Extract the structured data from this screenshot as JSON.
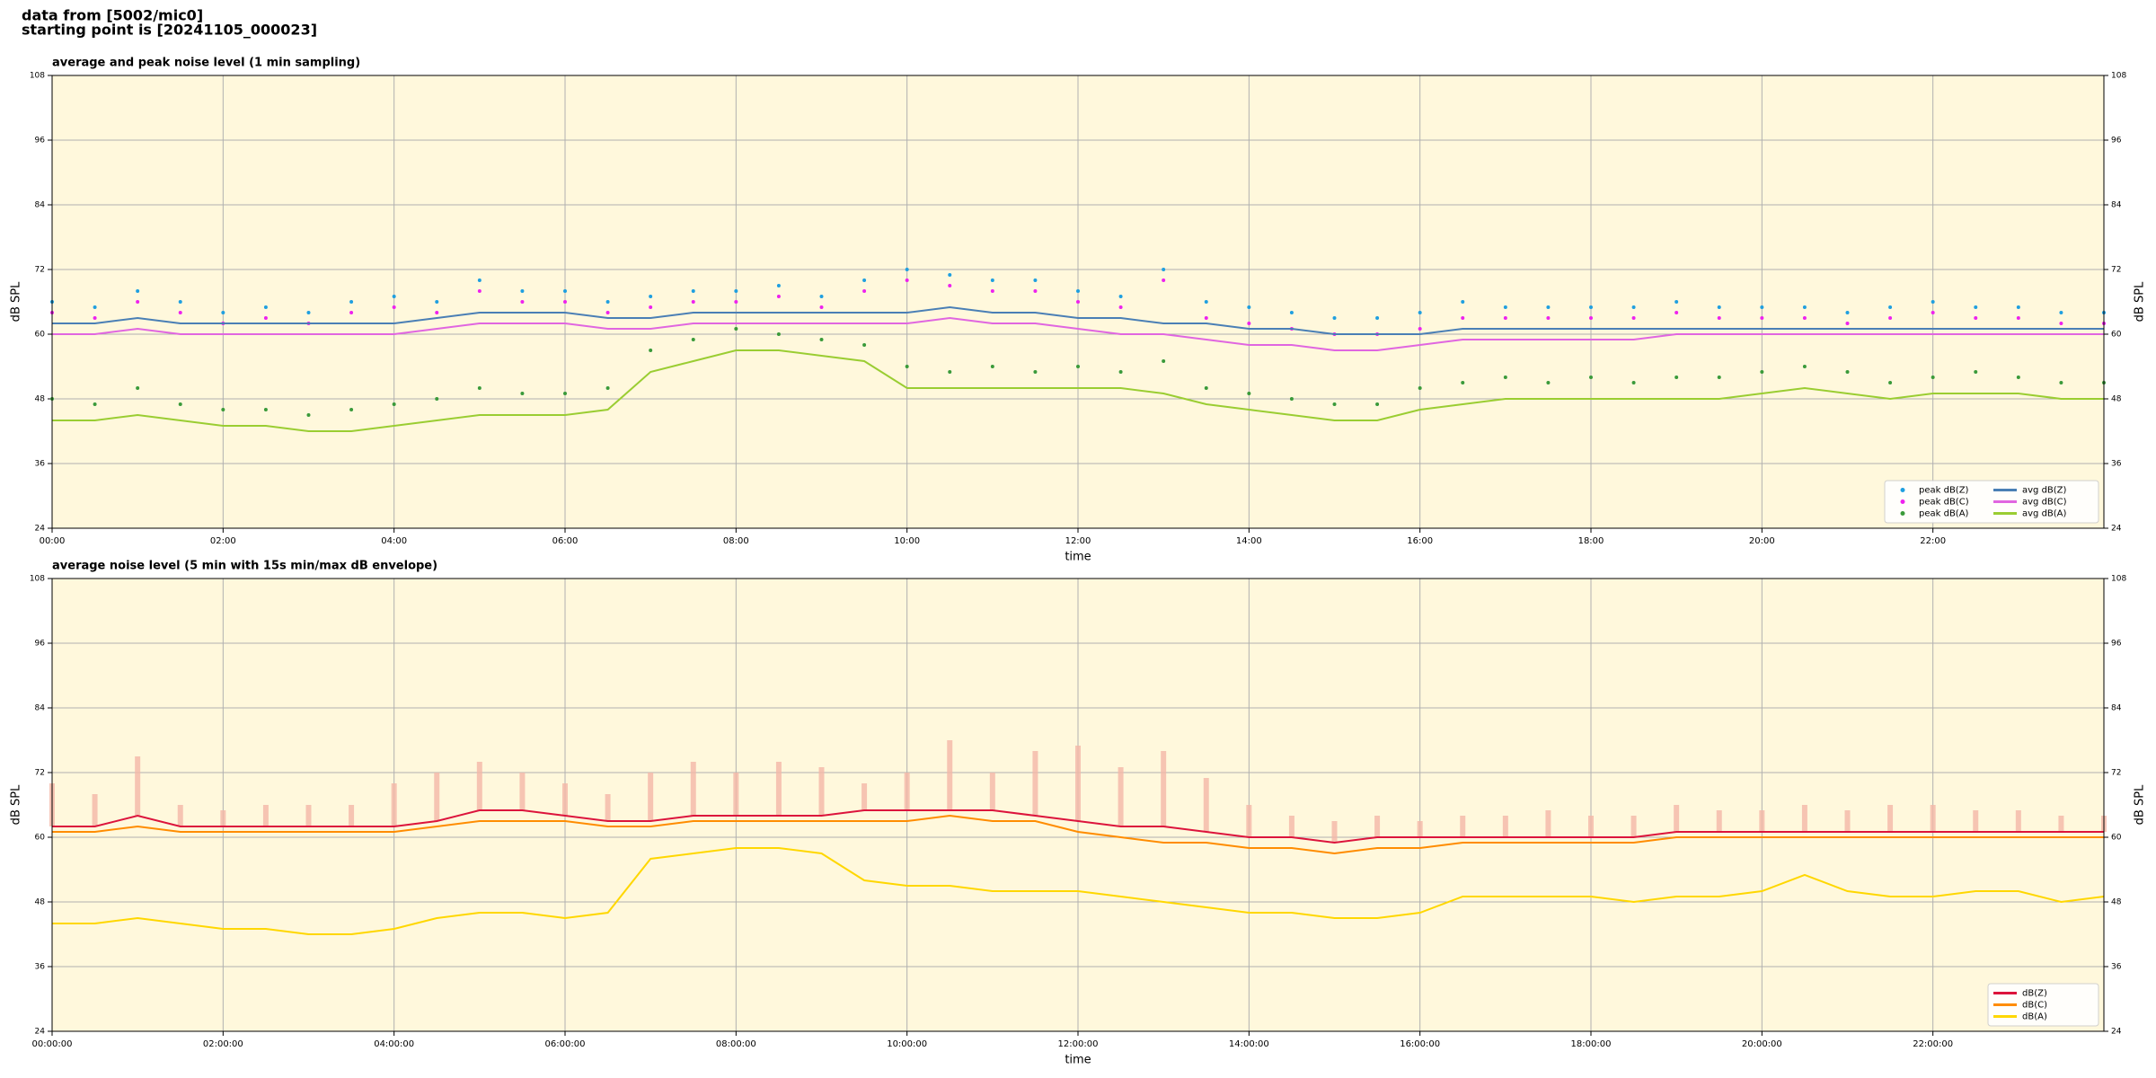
{
  "header": {
    "lines": [
      "data from [5002/mic0]",
      "starting point is [20241105_000023]"
    ]
  },
  "chart_data": [
    {
      "type": "line",
      "title": "average and peak noise level (1 min sampling)",
      "x_label": "time",
      "y_label": "dB SPL",
      "xlim": [
        0,
        24
      ],
      "ylim": [
        24,
        108
      ],
      "yticks": [
        24,
        36,
        48,
        60,
        72,
        84,
        96,
        108
      ],
      "xticks": [
        {
          "value": 0,
          "label": "00:00"
        },
        {
          "value": 2,
          "label": "02:00"
        },
        {
          "value": 4,
          "label": "04:00"
        },
        {
          "value": 6,
          "label": "06:00"
        },
        {
          "value": 8,
          "label": "08:00"
        },
        {
          "value": 10,
          "label": "10:00"
        },
        {
          "value": 12,
          "label": "12:00"
        },
        {
          "value": 14,
          "label": "14:00"
        },
        {
          "value": 16,
          "label": "16:00"
        },
        {
          "value": 18,
          "label": "18:00"
        },
        {
          "value": 20,
          "label": "20:00"
        },
        {
          "value": 22,
          "label": "22:00"
        }
      ],
      "grid": true,
      "legend": "lower right",
      "legend_ncol": 2,
      "x": [
        0,
        0.5,
        1,
        1.5,
        2,
        2.5,
        3,
        3.5,
        4,
        4.5,
        5,
        5.5,
        6,
        6.5,
        7,
        7.5,
        8,
        8.5,
        9,
        9.5,
        10,
        10.5,
        11,
        11.5,
        12,
        12.5,
        13,
        13.5,
        14,
        14.5,
        15,
        15.5,
        16,
        16.5,
        17,
        17.5,
        18,
        18.5,
        19,
        19.5,
        20,
        20.5,
        21,
        21.5,
        22,
        22.5,
        23,
        23.5,
        24
      ],
      "series": [
        {
          "name": "peak dB(Z)",
          "type": "scatter",
          "color": "#1f9fe0",
          "values": [
            66,
            65,
            68,
            66,
            64,
            65,
            64,
            66,
            67,
            66,
            70,
            68,
            68,
            66,
            67,
            68,
            68,
            69,
            67,
            70,
            72,
            71,
            70,
            70,
            68,
            67,
            72,
            66,
            65,
            64,
            63,
            63,
            64,
            66,
            65,
            65,
            65,
            65,
            66,
            65,
            65,
            65,
            64,
            65,
            66,
            65,
            65,
            64,
            64
          ]
        },
        {
          "name": "peak dB(C)",
          "type": "scatter",
          "color": "#ee22ee",
          "values": [
            64,
            63,
            66,
            64,
            62,
            63,
            62,
            64,
            65,
            64,
            68,
            66,
            66,
            64,
            65,
            66,
            66,
            67,
            65,
            68,
            70,
            69,
            68,
            68,
            66,
            65,
            70,
            63,
            62,
            61,
            60,
            60,
            61,
            63,
            63,
            63,
            63,
            63,
            64,
            63,
            63,
            63,
            62,
            63,
            64,
            63,
            63,
            62,
            62
          ]
        },
        {
          "name": "peak dB(A)",
          "type": "scatter",
          "color": "#3a9a3a",
          "values": [
            48,
            47,
            50,
            47,
            46,
            46,
            45,
            46,
            47,
            48,
            50,
            49,
            49,
            50,
            57,
            59,
            61,
            60,
            59,
            58,
            54,
            53,
            54,
            53,
            54,
            53,
            55,
            50,
            49,
            48,
            47,
            47,
            50,
            51,
            52,
            51,
            52,
            51,
            52,
            52,
            53,
            54,
            53,
            51,
            52,
            53,
            52,
            51,
            51
          ]
        },
        {
          "name": "avg dB(Z)",
          "type": "line",
          "color": "#4a7fb5",
          "values": [
            62,
            62,
            63,
            62,
            62,
            62,
            62,
            62,
            62,
            63,
            64,
            64,
            64,
            63,
            63,
            64,
            64,
            64,
            64,
            64,
            64,
            65,
            64,
            64,
            63,
            63,
            62,
            62,
            61,
            61,
            60,
            60,
            60,
            61,
            61,
            61,
            61,
            61,
            61,
            61,
            61,
            61,
            61,
            61,
            61,
            61,
            61,
            61,
            61
          ]
        },
        {
          "name": "avg dB(C)",
          "type": "line",
          "color": "#e066e0",
          "values": [
            60,
            60,
            61,
            60,
            60,
            60,
            60,
            60,
            60,
            61,
            62,
            62,
            62,
            61,
            61,
            62,
            62,
            62,
            62,
            62,
            62,
            63,
            62,
            62,
            61,
            60,
            60,
            59,
            58,
            58,
            57,
            57,
            58,
            59,
            59,
            59,
            59,
            59,
            60,
            60,
            60,
            60,
            60,
            60,
            60,
            60,
            60,
            60,
            60
          ]
        },
        {
          "name": "avg dB(A)",
          "type": "line",
          "color": "#9acd32",
          "values": [
            44,
            44,
            45,
            44,
            43,
            43,
            42,
            42,
            43,
            44,
            45,
            45,
            45,
            46,
            53,
            55,
            57,
            57,
            56,
            55,
            50,
            50,
            50,
            50,
            50,
            50,
            49,
            47,
            46,
            45,
            44,
            44,
            46,
            47,
            48,
            48,
            48,
            48,
            48,
            48,
            49,
            50,
            49,
            48,
            49,
            49,
            49,
            48,
            48
          ]
        }
      ]
    },
    {
      "type": "line",
      "title": "average noise level (5 min with 15s min/max dB envelope)",
      "x_label": "time",
      "y_label": "dB SPL",
      "xlim": [
        0,
        24
      ],
      "ylim": [
        24,
        108
      ],
      "yticks": [
        24,
        36,
        48,
        60,
        72,
        84,
        96,
        108
      ],
      "xticks": [
        {
          "value": 0,
          "label": "00:00:00"
        },
        {
          "value": 2,
          "label": "02:00:00"
        },
        {
          "value": 4,
          "label": "04:00:00"
        },
        {
          "value": 6,
          "label": "06:00:00"
        },
        {
          "value": 8,
          "label": "08:00:00"
        },
        {
          "value": 10,
          "label": "10:00:00"
        },
        {
          "value": 12,
          "label": "12:00:00"
        },
        {
          "value": 14,
          "label": "14:00:00"
        },
        {
          "value": 16,
          "label": "16:00:00"
        },
        {
          "value": 18,
          "label": "18:00:00"
        },
        {
          "value": 20,
          "label": "20:00:00"
        },
        {
          "value": 22,
          "label": "22:00:00"
        }
      ],
      "grid": true,
      "legend": "lower right",
      "legend_ncol": 1,
      "x": [
        0,
        0.5,
        1,
        1.5,
        2,
        2.5,
        3,
        3.5,
        4,
        4.5,
        5,
        5.5,
        6,
        6.5,
        7,
        7.5,
        8,
        8.5,
        9,
        9.5,
        10,
        10.5,
        11,
        11.5,
        12,
        12.5,
        13,
        13.5,
        14,
        14.5,
        15,
        15.5,
        16,
        16.5,
        17,
        17.5,
        18,
        18.5,
        19,
        19.5,
        20,
        20.5,
        21,
        21.5,
        22,
        22.5,
        23,
        23.5,
        24
      ],
      "series": [
        {
          "name": "dB(Z)",
          "type": "line",
          "color": "#dc143c",
          "envelope_color": "#f4b8a8",
          "values": [
            62,
            62,
            64,
            62,
            62,
            62,
            62,
            62,
            62,
            63,
            65,
            65,
            64,
            63,
            63,
            64,
            64,
            64,
            64,
            65,
            65,
            65,
            65,
            64,
            63,
            62,
            62,
            61,
            60,
            60,
            59,
            60,
            60,
            60,
            60,
            60,
            60,
            60,
            61,
            61,
            61,
            61,
            61,
            61,
            61,
            61,
            61,
            61,
            61
          ],
          "envelope_max": [
            70,
            68,
            75,
            66,
            65,
            66,
            66,
            66,
            70,
            72,
            74,
            72,
            70,
            68,
            72,
            74,
            72,
            74,
            73,
            70,
            72,
            78,
            72,
            76,
            77,
            73,
            76,
            71,
            66,
            64,
            63,
            64,
            63,
            64,
            64,
            65,
            64,
            64,
            66,
            65,
            65,
            66,
            65,
            66,
            66,
            65,
            65,
            64,
            64
          ]
        },
        {
          "name": "dB(C)",
          "type": "line",
          "color": "#ff8c00",
          "values": [
            61,
            61,
            62,
            61,
            61,
            61,
            61,
            61,
            61,
            62,
            63,
            63,
            63,
            62,
            62,
            63,
            63,
            63,
            63,
            63,
            63,
            64,
            63,
            63,
            61,
            60,
            59,
            59,
            58,
            58,
            57,
            58,
            58,
            59,
            59,
            59,
            59,
            59,
            60,
            60,
            60,
            60,
            60,
            60,
            60,
            60,
            60,
            60,
            60
          ]
        },
        {
          "name": "dB(A)",
          "type": "line",
          "color": "#ffd700",
          "values": [
            44,
            44,
            45,
            44,
            43,
            43,
            42,
            42,
            43,
            45,
            46,
            46,
            45,
            46,
            56,
            57,
            58,
            58,
            57,
            52,
            51,
            51,
            50,
            50,
            50,
            49,
            48,
            47,
            46,
            46,
            45,
            45,
            46,
            49,
            49,
            49,
            49,
            48,
            49,
            49,
            50,
            53,
            50,
            49,
            49,
            50,
            50,
            48,
            49
          ]
        }
      ]
    }
  ]
}
